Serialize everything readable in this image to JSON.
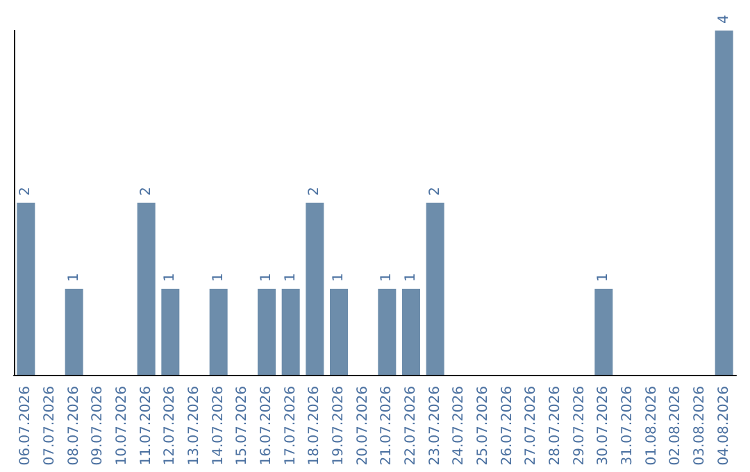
{
  "chart_data": {
    "type": "bar",
    "categories": [
      "06.07.2026",
      "07.07.2026",
      "08.07.2026",
      "09.07.2026",
      "10.07.2026",
      "11.07.2026",
      "12.07.2026",
      "13.07.2026",
      "14.07.2026",
      "15.07.2026",
      "16.07.2026",
      "17.07.2026",
      "18.07.2026",
      "19.07.2026",
      "20.07.2026",
      "21.07.2026",
      "22.07.2026",
      "23.07.2026",
      "24.07.2026",
      "25.07.2026",
      "26.07.2026",
      "27.07.2026",
      "28.07.2026",
      "29.07.2026",
      "30.07.2026",
      "31.07.2026",
      "01.08.2026",
      "02.08.2026",
      "03.08.2026",
      "04.08.2026"
    ],
    "values": [
      2,
      0,
      1,
      0,
      0,
      2,
      1,
      0,
      1,
      0,
      1,
      1,
      2,
      1,
      0,
      1,
      1,
      2,
      0,
      0,
      0,
      0,
      0,
      0,
      1,
      0,
      0,
      0,
      0,
      4
    ],
    "value_labels": [
      "2",
      null,
      "1",
      null,
      null,
      "2",
      "1",
      null,
      "1",
      null,
      "1",
      "1",
      "2",
      "1",
      null,
      "1",
      "1",
      "2",
      null,
      null,
      null,
      null,
      null,
      null,
      "1",
      null,
      null,
      null,
      null,
      "4"
    ],
    "color": "#6d8dab",
    "tick_labels": "x"
  }
}
